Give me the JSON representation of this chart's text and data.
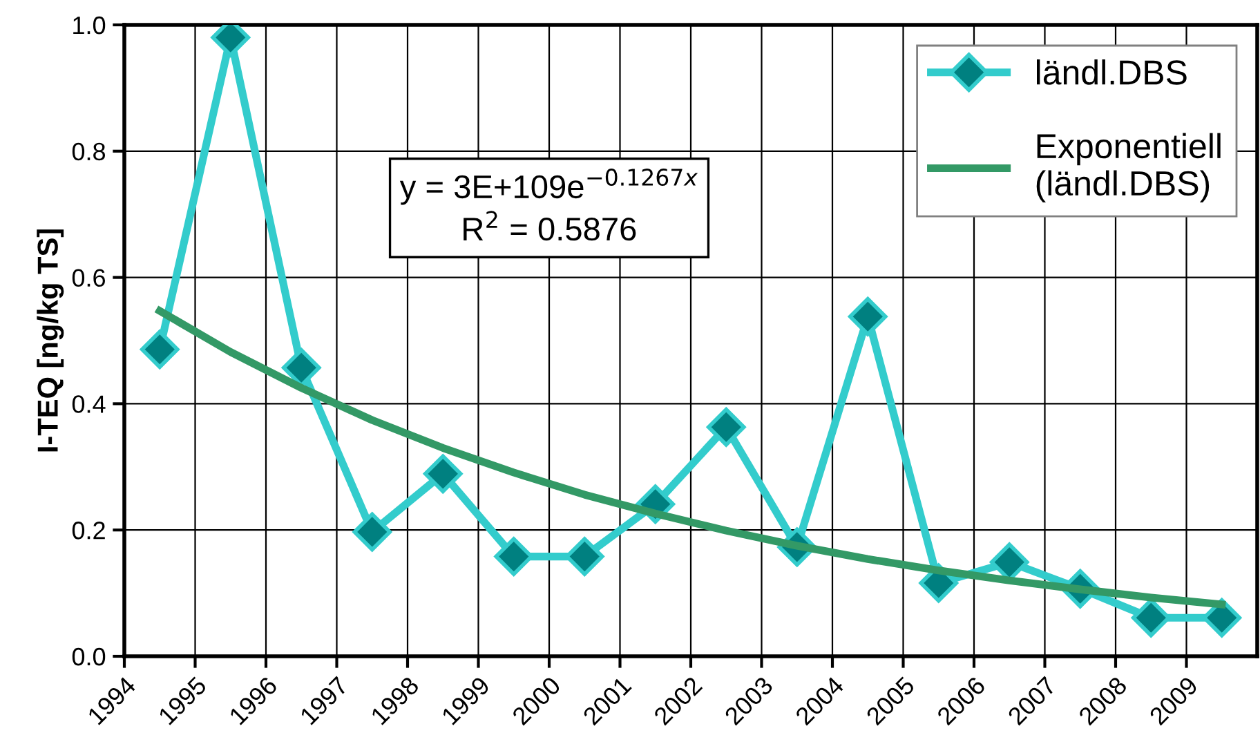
{
  "chart_data": {
    "type": "line",
    "ylabel": "I-TEQ [ng/kg TS]",
    "xlim": [
      1994,
      2010
    ],
    "xticks": [
      1994,
      1995,
      1996,
      1997,
      1998,
      1999,
      2000,
      2001,
      2002,
      2003,
      2004,
      2005,
      2006,
      2007,
      2008,
      2009
    ],
    "ylim": [
      0,
      1
    ],
    "yticks": [
      {
        "value": 0,
        "label": "0.0"
      },
      {
        "value": 0.2,
        "label": "0.2"
      },
      {
        "value": 0.4,
        "label": "0.4"
      },
      {
        "value": 0.6,
        "label": "0.6"
      },
      {
        "value": 0.8,
        "label": "0.8"
      },
      {
        "value": 1,
        "label": "1.0"
      }
    ],
    "grid": true,
    "legend": "top right",
    "series": [
      {
        "name": "ländl.DBS",
        "color": "#33cccc",
        "marker": "diamond",
        "x": [
          1994.5,
          1995.5,
          1996.5,
          1997.5,
          1998.5,
          1999.5,
          2000.5,
          2001.5,
          2002.5,
          2003.5,
          2004.5,
          2005.5,
          2006.5,
          2007.5,
          2008.5,
          2009.5
        ],
        "values": [
          0.486,
          0.98,
          0.457,
          0.197,
          0.289,
          0.158,
          0.158,
          0.241,
          0.363,
          0.173,
          0.538,
          0.116,
          0.149,
          0.107,
          0.061,
          0.061
        ]
      },
      {
        "name": "Exponentiell\n(ländl.DBS)",
        "color": "#339966",
        "marker": "none",
        "x": [
          1994.5,
          1995.5,
          1996.5,
          1997.5,
          1998.5,
          1999.5,
          2000.5,
          2001.5,
          2002.5,
          2003.5,
          2004.5,
          2005.5,
          2006.5,
          2007.5,
          2008.5,
          2009.5
        ],
        "values": [
          0.547,
          0.482,
          0.425,
          0.374,
          0.33,
          0.291,
          0.256,
          0.226,
          0.199,
          0.175,
          0.154,
          0.136,
          0.12,
          0.106,
          0.093,
          0.082
        ]
      }
    ],
    "annotations": [
      "y = 3E+109e$^{−0.1267x}$\nR$^{2}$ = 0.5876"
    ]
  }
}
